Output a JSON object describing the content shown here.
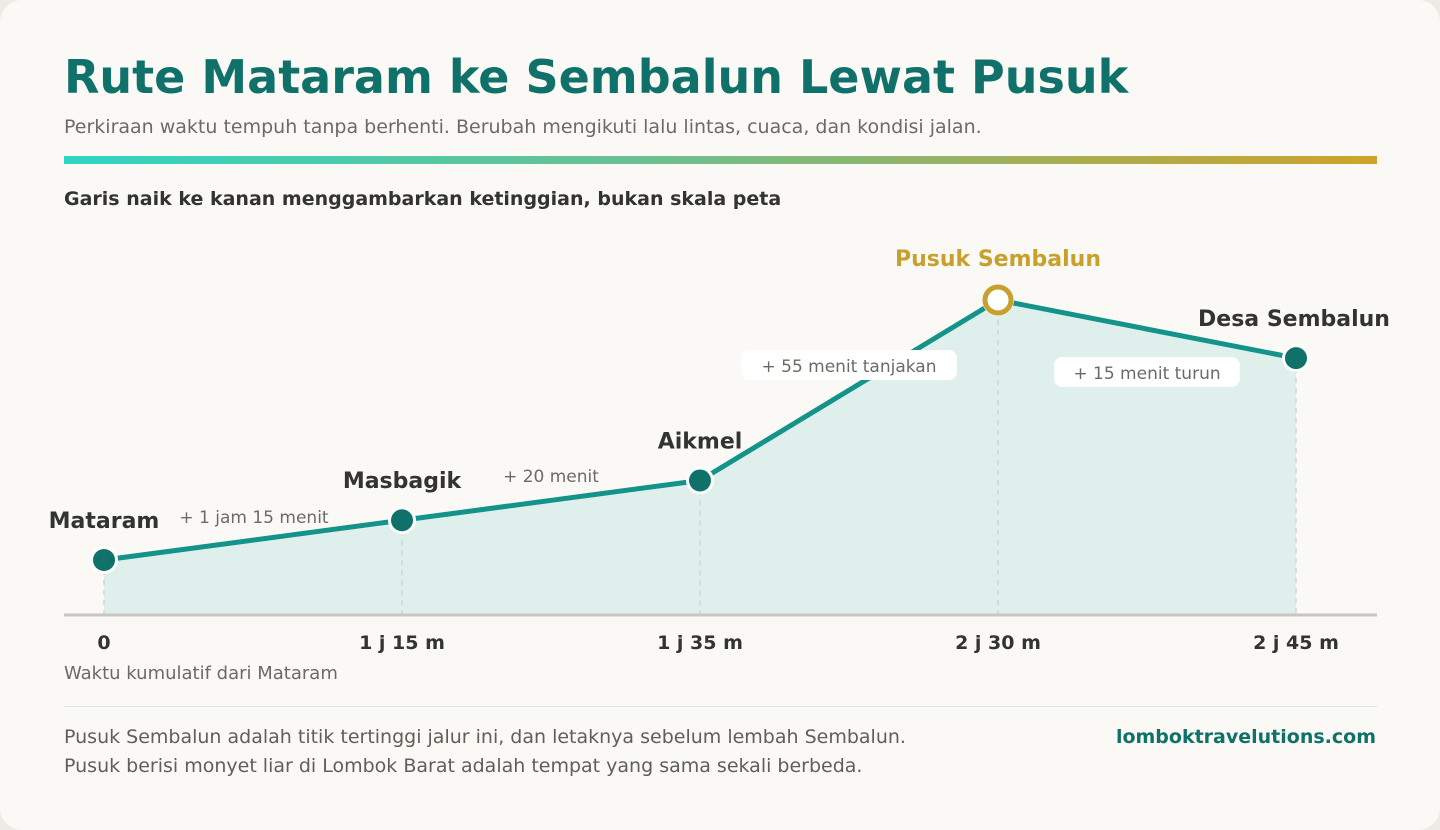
{
  "header": {
    "title": "Rute Mataram ke Sembalun Lewat Pusuk",
    "subtitle": "Perkiraan waktu tempuh tanpa berhenti. Berubah mengikuti lalu lintas, cuaca, dan kondisi jalan.",
    "chart_note": "Garis naik ke kanan menggambarkan ketinggian, bukan skala peta"
  },
  "chart_data": {
    "type": "line",
    "title": "",
    "xlabel": "Waktu kumulatif dari Mataram",
    "ylabel": "",
    "x_minutes": [
      0,
      75,
      95,
      150,
      165
    ],
    "categories": [
      "0",
      "1 j 15 m",
      "1 j 35 m",
      "2 j 30 m",
      "2 j 45 m"
    ],
    "points": [
      {
        "name": "Mataram",
        "highlight": false
      },
      {
        "name": "Masbagik",
        "highlight": false
      },
      {
        "name": "Aikmel",
        "highlight": false
      },
      {
        "name": "Pusuk Sembalun",
        "highlight": true
      },
      {
        "name": "Desa Sembalun",
        "highlight": false
      }
    ],
    "relative_elevation": [
      0.15,
      0.28,
      0.41,
      1.0,
      0.81
    ],
    "segment_labels": [
      "+ 1 jam 15 menit",
      "+ 20 menit",
      "+ 55 menit tanjakan",
      "+ 15 menit turun"
    ],
    "grid": false,
    "legend": "none"
  },
  "footer": {
    "note_line1": "Pusuk Sembalun adalah titik tertinggi jalur ini, dan letaknya sebelum lembah Sembalun.",
    "note_line2": "Pusuk berisi monyet liar di Lombok Barat adalah tempat yang sama sekali berbeda.",
    "brand": "lomboktravelutions.com"
  },
  "colors": {
    "primary": "#0f7169",
    "line": "#13938a",
    "highlight": "#c7a02e",
    "area": "#dff0ec",
    "axis": "#c8c6c0",
    "text_dark": "#33332f",
    "text_muted": "#6b6b66"
  }
}
